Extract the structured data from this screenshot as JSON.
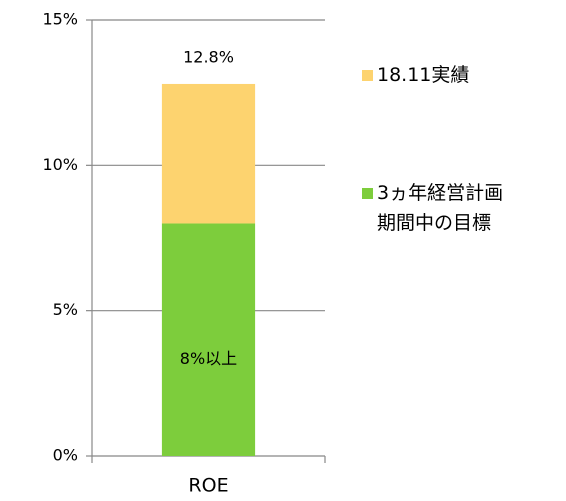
{
  "chart_data": {
    "type": "stacked_bar",
    "categories": [
      "ROE"
    ],
    "series": [
      {
        "name": "3ヵ年経営計画\n期間中の目標",
        "color": "#7dcd3c",
        "values": [
          8
        ],
        "value_labels": [
          "8%以上"
        ]
      },
      {
        "name": "18.11実績",
        "color": "#fdd36f",
        "values": [
          4.8
        ]
      }
    ],
    "totals": [
      12.8
    ],
    "total_labels": [
      "12.8%"
    ],
    "ylim": [
      0,
      15
    ],
    "yticks": [
      {
        "value": 0,
        "label": "0%"
      },
      {
        "value": 5,
        "label": "5%"
      },
      {
        "value": 10,
        "label": "10%"
      },
      {
        "value": 15,
        "label": "15%"
      }
    ],
    "grid": true
  }
}
